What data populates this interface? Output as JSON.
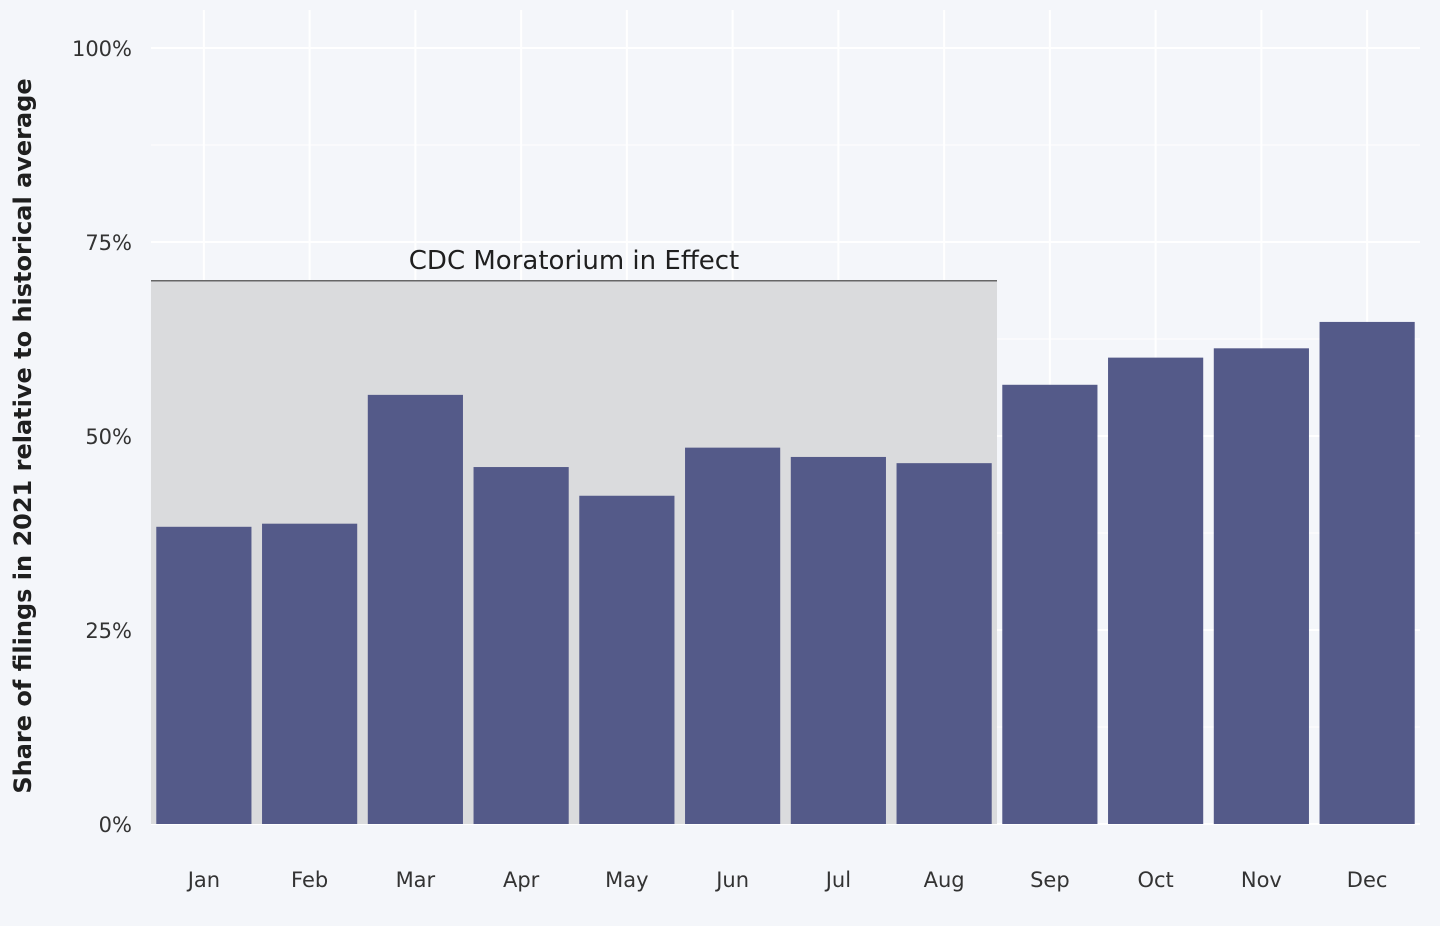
{
  "chart_data": {
    "type": "bar",
    "title": "",
    "xlabel": "",
    "ylabel": "Share of filings in 2021 relative to historical average",
    "categories": [
      "Jan",
      "Feb",
      "Mar",
      "Apr",
      "May",
      "Jun",
      "Jul",
      "Aug",
      "Sep",
      "Oct",
      "Nov",
      "Dec"
    ],
    "values": [
      38.3,
      38.7,
      55.3,
      46.0,
      42.3,
      48.5,
      47.3,
      46.5,
      56.6,
      60.1,
      61.3,
      64.7
    ],
    "ylim": [
      0,
      100
    ],
    "yticks": [
      0,
      25,
      50,
      75,
      100
    ],
    "ytick_labels": [
      "0%",
      "25%",
      "50%",
      "75%",
      "100%"
    ],
    "grid": true,
    "bar_color": "#545a89",
    "annotation": {
      "text": "CDC Moratorium in Effect",
      "from_category": "Jan",
      "to_category": "Aug",
      "level": 70,
      "shade_color": "#dadbdd"
    }
  }
}
